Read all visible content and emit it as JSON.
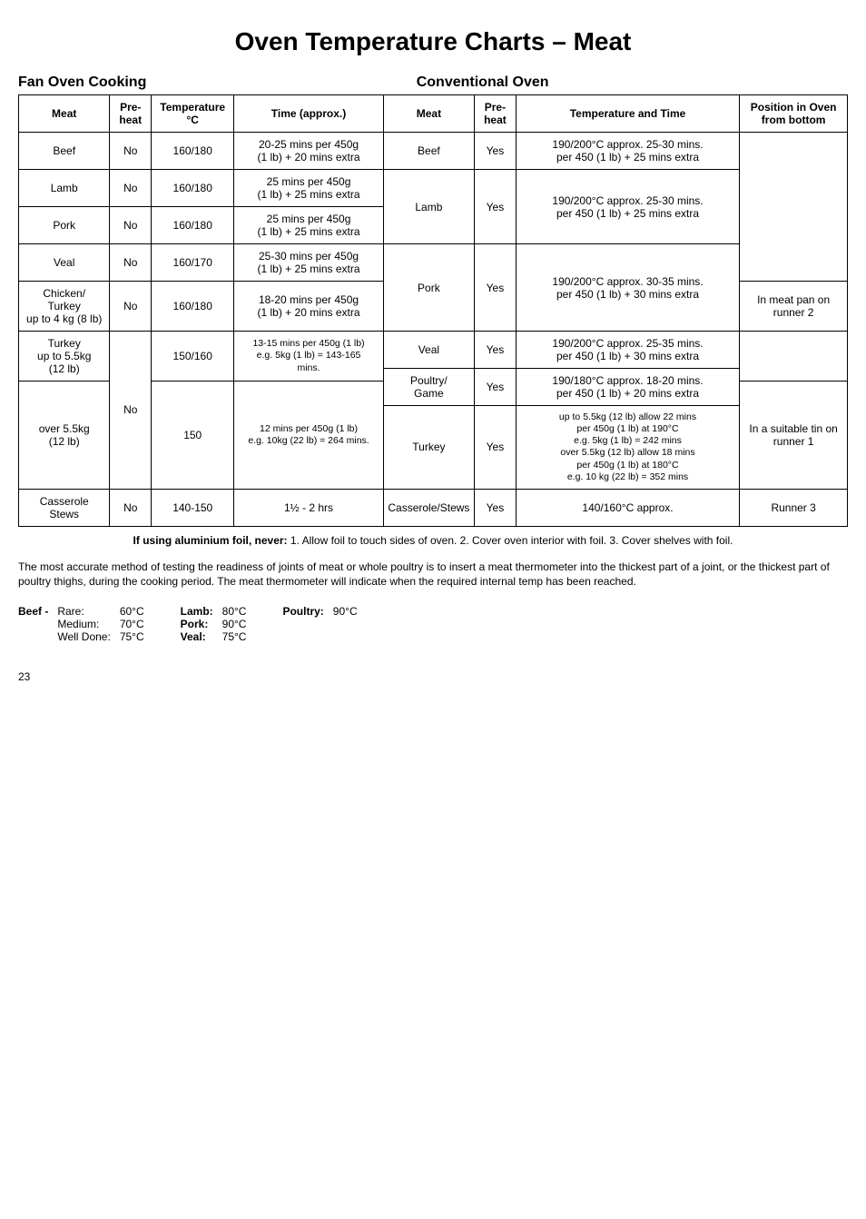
{
  "title": "Oven Temperature Charts – Meat",
  "sections": {
    "left": "Fan Oven Cooking",
    "right": "Conventional Oven"
  },
  "headers": {
    "meat": "Meat",
    "preheat": "Pre-heat",
    "temp": "Temperature °C",
    "time": "Time (approx.)",
    "meat2": "Meat",
    "preheat2": "Pre-heat",
    "tempTime": "Temperature and Time",
    "position": "Position in Oven from bottom"
  },
  "rows": [
    {
      "meatL": "Beef",
      "preL": "No",
      "tempL": "160/180",
      "timeL": "20-25 mins per 450g\n(1 lb) + 20 mins extra",
      "meatR": "Beef",
      "preR": "Yes",
      "ttR": "190/200°C approx. 25-30 mins.\nper 450 (1 lb) + 25 mins extra"
    },
    {
      "meatL": "Lamb",
      "preL": "No",
      "tempL": "160/180",
      "timeL": "25 mins per 450g\n(1 lb) + 25 mins extra",
      "meatR": "Lamb",
      "preR": "Yes",
      "ttR": "190/200°C approx. 25-30 mins.\nper 450 (1 lb) + 25 mins extra"
    },
    {
      "meatL": "Pork",
      "preL": "No",
      "tempL": "160/180",
      "timeL": "25 mins per 450g\n(1 lb) + 25 mins extra",
      "meatR": "Pork",
      "preR": "Yes",
      "ttR": "190/200°C approx. 30-35 mins.\nper 450 (1 lb) + 30 mins extra",
      "posR": "In meat pan on runner 2"
    },
    {
      "meatL": "Veal",
      "preL": "No",
      "tempL": "160/170",
      "timeL": "25-30 mins per 450g\n(1 lb) + 25 mins extra"
    },
    {
      "meatL": "Chicken/\nTurkey\nup to 4 kg (8 lb)",
      "preL": "No",
      "tempL": "160/180",
      "timeL": "18-20 mins per 450g\n(1 lb) + 20 mins extra",
      "meatR": "Veal",
      "preR": "Yes",
      "ttR": "190/200°C approx. 25-35 mins.\nper 450 (1 lb) + 30 mins extra"
    },
    {
      "meatL": "Turkey\nup to 5.5kg\n(12 lb)",
      "tempL": "150/160",
      "timeL": "13-15 mins per 450g (1 lb)\ne.g. 5kg (1 lb) = 143-165\nmins.",
      "meatR": "Poultry/\nGame",
      "preR": "Yes",
      "ttR": "190/180°C approx. 18-20 mins.\nper 450 (1 lb) + 20 mins extra"
    },
    {
      "meatL": "over 5.5kg\n(12 lb)",
      "preL": "No",
      "tempL": "150",
      "timeL": "12 mins per 450g (1 lb)\ne.g. 10kg (22 lb) = 264 mins.",
      "meatR": "Turkey",
      "preR": "Yes",
      "ttR": "up to 5.5kg (12 lb) allow 22 mins\nper 450g (1 lb) at 190°C\ne.g. 5kg (1 lb) = 242 mins\nover 5.5kg (12 lb) allow 18 mins\nper 450g (1 lb) at 180°C\ne.g. 10 kg (22 lb) = 352 mins",
      "posR": "In a suitable tin on runner 1"
    },
    {
      "meatL": "Casserole\nStews",
      "preL": "No",
      "tempL": "140-150",
      "timeL": "1½ - 2 hrs",
      "meatR": "Casserole/Stews",
      "preR": "Yes",
      "ttR": "140/160°C approx.",
      "posR": "Runner 3"
    }
  ],
  "footerNote": {
    "prefix": "If using aluminium foil, never:",
    "items": "  1. Allow foil to touch sides of oven.   2. Cover oven interior with foil.   3. Cover shelves with foil."
  },
  "paragraph": "The most accurate method of testing the readiness of joints of meat or whole poultry is to insert a meat thermometer into the thickest part of a joint, or the thickest part of poultry thighs, during the cooking period. The meat thermometer will indicate when the required internal temp has been reached.",
  "meatTemps": {
    "beef": {
      "label": "Beef -",
      "items": [
        "Rare:",
        "Medium:",
        "Well Done:"
      ],
      "vals": [
        "60°C",
        "70°C",
        "75°C"
      ]
    },
    "lamb": {
      "label": "Lamb:",
      "val": "80°C"
    },
    "pork": {
      "label": "Pork:",
      "val": "90°C"
    },
    "veal": {
      "label": "Veal:",
      "val": "75°C"
    },
    "poultry": {
      "label": "Poultry:",
      "val": "90°C"
    }
  },
  "pageNum": "23"
}
